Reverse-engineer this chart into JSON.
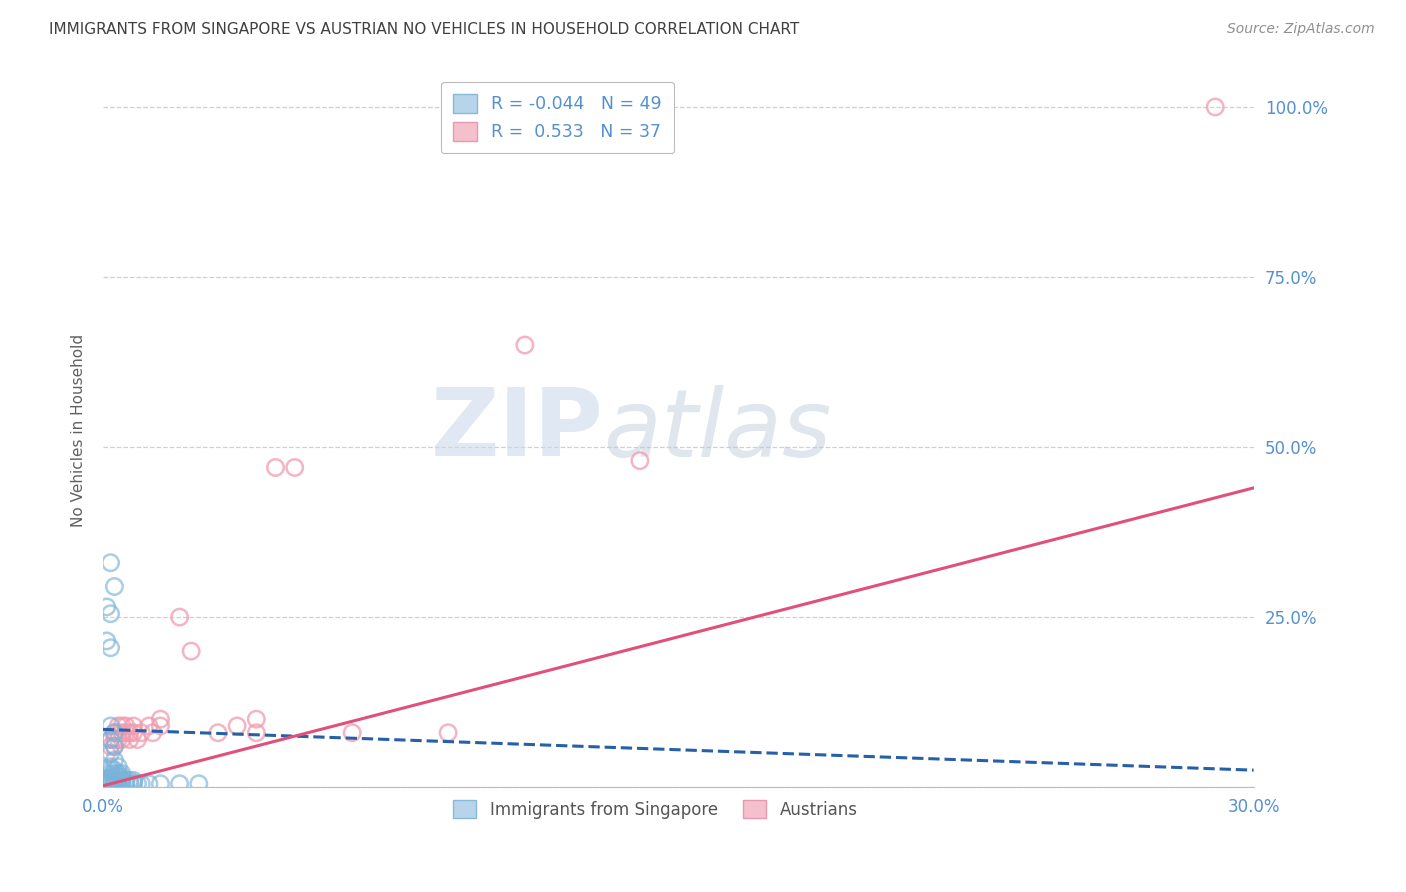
{
  "title": "IMMIGRANTS FROM SINGAPORE VS AUSTRIAN NO VEHICLES IN HOUSEHOLD CORRELATION CHART",
  "source": "Source: ZipAtlas.com",
  "ylabel": "No Vehicles in Household",
  "xlim": [
    0.0,
    0.3
  ],
  "ylim": [
    0.0,
    1.05
  ],
  "x_ticks": [
    0.0,
    0.05,
    0.1,
    0.15,
    0.2,
    0.25,
    0.3
  ],
  "x_tick_labels": [
    "0.0%",
    "",
    "",
    "",
    "",
    "",
    "30.0%"
  ],
  "y_ticks": [
    0.0,
    0.25,
    0.5,
    0.75,
    1.0
  ],
  "y_tick_labels": [
    "",
    "25.0%",
    "50.0%",
    "75.0%",
    "100.0%"
  ],
  "blue_scatter": [
    [
      0.001,
      0.005
    ],
    [
      0.001,
      0.008
    ],
    [
      0.001,
      0.01
    ],
    [
      0.001,
      0.012
    ],
    [
      0.002,
      0.005
    ],
    [
      0.002,
      0.008
    ],
    [
      0.002,
      0.012
    ],
    [
      0.002,
      0.015
    ],
    [
      0.002,
      0.02
    ],
    [
      0.002,
      0.025
    ],
    [
      0.002,
      0.03
    ],
    [
      0.002,
      0.05
    ],
    [
      0.002,
      0.07
    ],
    [
      0.002,
      0.09
    ],
    [
      0.003,
      0.005
    ],
    [
      0.003,
      0.01
    ],
    [
      0.003,
      0.015
    ],
    [
      0.003,
      0.02
    ],
    [
      0.003,
      0.025
    ],
    [
      0.003,
      0.04
    ],
    [
      0.003,
      0.06
    ],
    [
      0.003,
      0.08
    ],
    [
      0.004,
      0.005
    ],
    [
      0.004,
      0.01
    ],
    [
      0.004,
      0.015
    ],
    [
      0.004,
      0.02
    ],
    [
      0.004,
      0.03
    ],
    [
      0.005,
      0.005
    ],
    [
      0.005,
      0.01
    ],
    [
      0.005,
      0.015
    ],
    [
      0.005,
      0.02
    ],
    [
      0.006,
      0.005
    ],
    [
      0.006,
      0.01
    ],
    [
      0.007,
      0.005
    ],
    [
      0.007,
      0.01
    ],
    [
      0.008,
      0.005
    ],
    [
      0.008,
      0.01
    ],
    [
      0.009,
      0.005
    ],
    [
      0.01,
      0.005
    ],
    [
      0.012,
      0.005
    ],
    [
      0.015,
      0.005
    ],
    [
      0.02,
      0.005
    ],
    [
      0.025,
      0.005
    ],
    [
      0.002,
      0.33
    ],
    [
      0.003,
      0.295
    ],
    [
      0.001,
      0.215
    ],
    [
      0.002,
      0.205
    ],
    [
      0.001,
      0.265
    ],
    [
      0.002,
      0.255
    ]
  ],
  "pink_scatter": [
    [
      0.001,
      0.05
    ],
    [
      0.002,
      0.06
    ],
    [
      0.002,
      0.07
    ],
    [
      0.003,
      0.06
    ],
    [
      0.003,
      0.07
    ],
    [
      0.003,
      0.08
    ],
    [
      0.004,
      0.07
    ],
    [
      0.004,
      0.08
    ],
    [
      0.004,
      0.09
    ],
    [
      0.005,
      0.07
    ],
    [
      0.005,
      0.08
    ],
    [
      0.005,
      0.09
    ],
    [
      0.006,
      0.08
    ],
    [
      0.006,
      0.09
    ],
    [
      0.007,
      0.07
    ],
    [
      0.007,
      0.08
    ],
    [
      0.008,
      0.08
    ],
    [
      0.008,
      0.09
    ],
    [
      0.009,
      0.07
    ],
    [
      0.01,
      0.08
    ],
    [
      0.012,
      0.09
    ],
    [
      0.013,
      0.08
    ],
    [
      0.015,
      0.09
    ],
    [
      0.015,
      0.1
    ],
    [
      0.02,
      0.25
    ],
    [
      0.023,
      0.2
    ],
    [
      0.03,
      0.08
    ],
    [
      0.035,
      0.09
    ],
    [
      0.04,
      0.08
    ],
    [
      0.04,
      0.1
    ],
    [
      0.045,
      0.47
    ],
    [
      0.05,
      0.47
    ],
    [
      0.065,
      0.08
    ],
    [
      0.09,
      0.08
    ],
    [
      0.11,
      0.65
    ],
    [
      0.14,
      0.48
    ],
    [
      0.29,
      1.0
    ]
  ],
  "blue_line": [
    [
      0.0,
      0.085
    ],
    [
      0.3,
      0.025
    ]
  ],
  "pink_line": [
    [
      0.0,
      0.002
    ],
    [
      0.3,
      0.44
    ]
  ],
  "watermark_zip": "ZIP",
  "watermark_atlas": "atlas",
  "bg_color": "#ffffff",
  "grid_color": "#d0d0d0",
  "blue_scatter_color": "#7ab3d9",
  "pink_scatter_color": "#f09cb0",
  "blue_line_color": "#2860a8",
  "pink_line_color": "#e0507a",
  "title_color": "#404040",
  "source_color": "#909090",
  "tick_color": "#5590d0",
  "ylabel_color": "#606060"
}
